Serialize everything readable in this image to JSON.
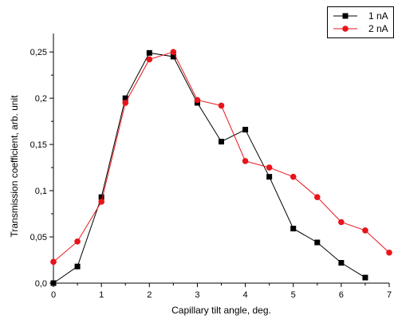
{
  "chart_data": {
    "type": "line",
    "title": "",
    "xlabel": "Capillary tilt angle, deg.",
    "ylabel": "Transmission coefficient, arb. unit",
    "xlim": [
      0,
      7
    ],
    "ylim": [
      0,
      0.27
    ],
    "x_ticks": [
      "0",
      "1",
      "2",
      "3",
      "4",
      "5",
      "6",
      "7"
    ],
    "y_ticks": [
      "0,0",
      "0,05",
      "0,1",
      "0,15",
      "0,2",
      "0,25"
    ],
    "grid": false,
    "legend_position": "top-right",
    "series": [
      {
        "name": "1 nA",
        "color": "#000000",
        "marker": "square",
        "x": [
          0,
          0.5,
          1,
          1.5,
          2,
          2.5,
          3,
          3.5,
          4,
          4.5,
          5,
          5.5,
          6,
          6.5
        ],
        "y": [
          0.0,
          0.018,
          0.093,
          0.2,
          0.249,
          0.245,
          0.195,
          0.153,
          0.166,
          0.115,
          0.059,
          0.044,
          0.022,
          0.006
        ]
      },
      {
        "name": "2 nA",
        "color": "#e8141b",
        "marker": "circle",
        "x": [
          0,
          0.5,
          1,
          1.5,
          2,
          2.5,
          3,
          3.5,
          4,
          4.5,
          5,
          5.5,
          6,
          6.5,
          7
        ],
        "y": [
          0.023,
          0.045,
          0.088,
          0.195,
          0.242,
          0.25,
          0.198,
          0.192,
          0.132,
          0.125,
          0.115,
          0.093,
          0.066,
          0.057,
          0.033
        ]
      }
    ]
  }
}
